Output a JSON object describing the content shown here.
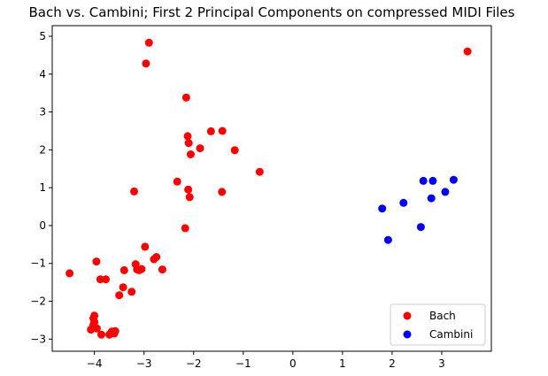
{
  "chart_data": {
    "type": "scatter",
    "title": "Bach vs. Cambini; First 2 Principal Components on compressed MIDI Files",
    "xlabel": "",
    "ylabel": "",
    "xlim": [
      -4.85,
      4.0
    ],
    "ylim": [
      -3.32,
      5.28
    ],
    "xticks": [
      -4,
      -3,
      -2,
      -1,
      0,
      1,
      2,
      3
    ],
    "yticks": [
      -3,
      -2,
      -1,
      0,
      1,
      2,
      3,
      4,
      5
    ],
    "xtick_labels": [
      "−4",
      "−3",
      "−2",
      "−1",
      "0",
      "1",
      "2",
      "3"
    ],
    "ytick_labels": [
      "−3",
      "−2",
      "−1",
      "0",
      "1",
      "2",
      "3",
      "4",
      "5"
    ],
    "grid": false,
    "legend_position": "lower-right",
    "series": [
      {
        "name": "Bach",
        "color": "#ff0000",
        "points": [
          [
            -2.9,
            4.83
          ],
          [
            -2.96,
            4.28
          ],
          [
            3.52,
            4.6
          ],
          [
            -2.15,
            3.38
          ],
          [
            -1.65,
            2.49
          ],
          [
            -1.42,
            2.5
          ],
          [
            -2.12,
            2.36
          ],
          [
            -2.1,
            2.18
          ],
          [
            -1.87,
            2.04
          ],
          [
            -2.06,
            1.88
          ],
          [
            -1.17,
            1.99
          ],
          [
            -0.67,
            1.42
          ],
          [
            -2.33,
            1.16
          ],
          [
            -2.11,
            0.95
          ],
          [
            -1.43,
            0.89
          ],
          [
            -3.2,
            0.9
          ],
          [
            -2.08,
            0.75
          ],
          [
            -2.17,
            -0.07
          ],
          [
            -2.98,
            -0.56
          ],
          [
            -2.75,
            -0.83
          ],
          [
            -2.8,
            -0.89
          ],
          [
            -2.63,
            -1.16
          ],
          [
            -3.96,
            -0.95
          ],
          [
            -3.17,
            -1.02
          ],
          [
            -3.14,
            -1.16
          ],
          [
            -3.05,
            -1.15
          ],
          [
            -3.1,
            -1.18
          ],
          [
            -3.4,
            -1.18
          ],
          [
            -4.5,
            -1.26
          ],
          [
            -3.88,
            -1.42
          ],
          [
            -3.77,
            -1.42
          ],
          [
            -3.42,
            -1.63
          ],
          [
            -3.25,
            -1.75
          ],
          [
            -3.5,
            -1.84
          ],
          [
            -4.0,
            -2.38
          ],
          [
            -4.02,
            -2.45
          ],
          [
            -4.0,
            -2.55
          ],
          [
            -4.02,
            -2.63
          ],
          [
            -3.95,
            -2.72
          ],
          [
            -4.07,
            -2.75
          ],
          [
            -3.65,
            -2.8
          ],
          [
            -3.58,
            -2.79
          ],
          [
            -3.6,
            -2.85
          ],
          [
            -3.7,
            -2.88
          ],
          [
            -3.86,
            -2.88
          ]
        ]
      },
      {
        "name": "Cambini",
        "color": "#0000ff",
        "points": [
          [
            3.24,
            1.21
          ],
          [
            2.63,
            1.18
          ],
          [
            2.82,
            1.18
          ],
          [
            3.07,
            0.89
          ],
          [
            2.79,
            0.72
          ],
          [
            2.23,
            0.6
          ],
          [
            1.8,
            0.45
          ],
          [
            2.58,
            -0.04
          ],
          [
            1.92,
            -0.38
          ]
        ]
      }
    ]
  }
}
